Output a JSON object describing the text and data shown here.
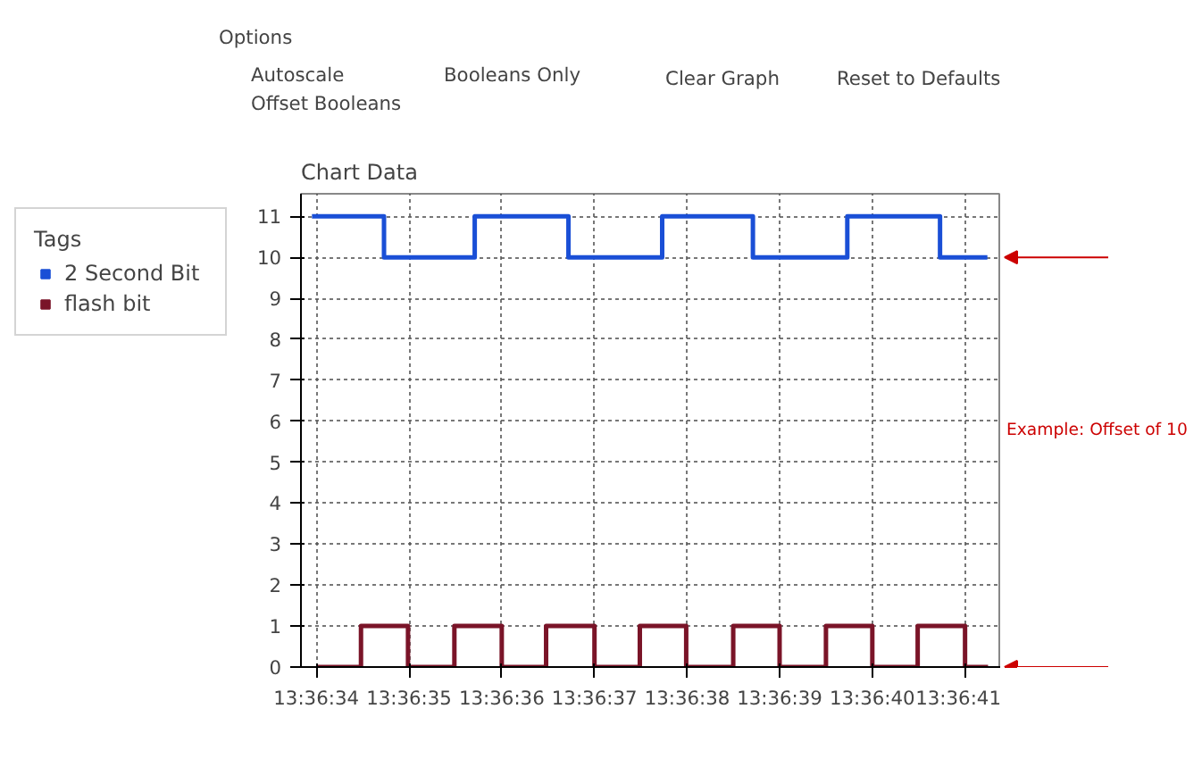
{
  "chart_data": {
    "type": "step",
    "title": "Chart Data",
    "legend_title": "Tags",
    "legend": "left",
    "grid": true,
    "line_style": "solid",
    "marker": "none",
    "xlim": [
      13.609398,
      13.611497
    ],
    "ylim": [
      0,
      11.55
    ],
    "xticks": [
      {
        "value": 13.609444,
        "label": "13:36:34"
      },
      {
        "value": 13.609722,
        "label": "13:36:35"
      },
      {
        "value": 13.61,
        "label": "13:36:36"
      },
      {
        "value": 13.610278,
        "label": "13:36:37"
      },
      {
        "value": 13.610556,
        "label": "13:36:38"
      },
      {
        "value": 13.610833,
        "label": "13:36:39"
      },
      {
        "value": 13.611111,
        "label": "13:36:40"
      },
      {
        "value": 13.611389,
        "label": "13:36:41"
      }
    ],
    "yticks": [
      0,
      1,
      2,
      3,
      4,
      5,
      6,
      7,
      8,
      9,
      10,
      11
    ],
    "series": [
      {
        "name": "2 Second Bit",
        "color": "#1a4fd6",
        "x": [
          13.609431,
          13.609647,
          13.609919,
          13.6102,
          13.610481,
          13.610753,
          13.611036,
          13.611314,
          13.611456
        ],
        "values": [
          11,
          10,
          11,
          10,
          11,
          10,
          11,
          10,
          10
        ]
      },
      {
        "name": "flash bit",
        "color": "#7a1428",
        "x": [
          13.609444,
          13.609578,
          13.609719,
          13.609858,
          13.61,
          13.610133,
          13.610278,
          13.610414,
          13.610553,
          13.610694,
          13.610833,
          13.610972,
          13.611111,
          13.611247,
          13.611389,
          13.611458
        ],
        "values": [
          0,
          1,
          0,
          1,
          0,
          1,
          0,
          1,
          0,
          1,
          0,
          1,
          0,
          1,
          0,
          0
        ]
      }
    ],
    "annotations": [
      "Options",
      "Autoscale",
      "Offset Booleans",
      "Booleans Only",
      "Clear Graph",
      "Reset to Defaults",
      "Example: Offset of 10"
    ]
  }
}
